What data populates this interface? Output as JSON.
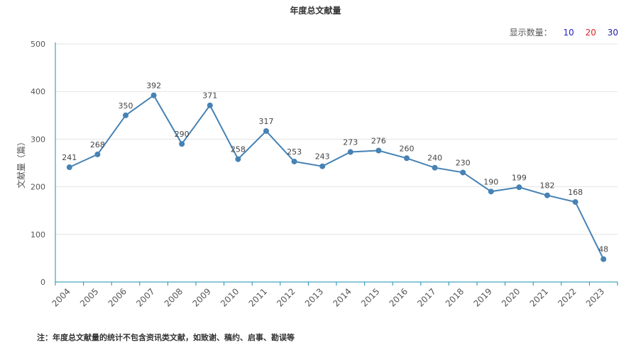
{
  "chart_data": {
    "type": "line",
    "title": "年度总文献量",
    "ylabel": "文献量（篇）",
    "xlabel": "",
    "ylim": [
      0,
      500
    ],
    "yticks": [
      0,
      100,
      200,
      300,
      400,
      500
    ],
    "x": [
      "2004",
      "2005",
      "2006",
      "2007",
      "2008",
      "2009",
      "2010",
      "2011",
      "2012",
      "2013",
      "2014",
      "2015",
      "2016",
      "2017",
      "2018",
      "2019",
      "2020",
      "2021",
      "2022",
      "2023"
    ],
    "series": [
      {
        "values": [
          241,
          268,
          350,
          392,
          290,
          371,
          258,
          317,
          253,
          243,
          273,
          276,
          260,
          240,
          230,
          190,
          199,
          182,
          168,
          48
        ]
      }
    ],
    "grid": true,
    "line_color": "#4682b4",
    "axis_color": "#1a8fb0"
  },
  "controls": {
    "label": "显示数量：",
    "options": [
      {
        "text": "10",
        "color": "#2222cc"
      },
      {
        "text": "20",
        "color": "#dd2222"
      },
      {
        "text": "30",
        "color": "#2222aa"
      }
    ]
  },
  "footnote": "注：年度总文献量的统计不包含资讯类文献，如致谢、稿约、启事、勘误等"
}
